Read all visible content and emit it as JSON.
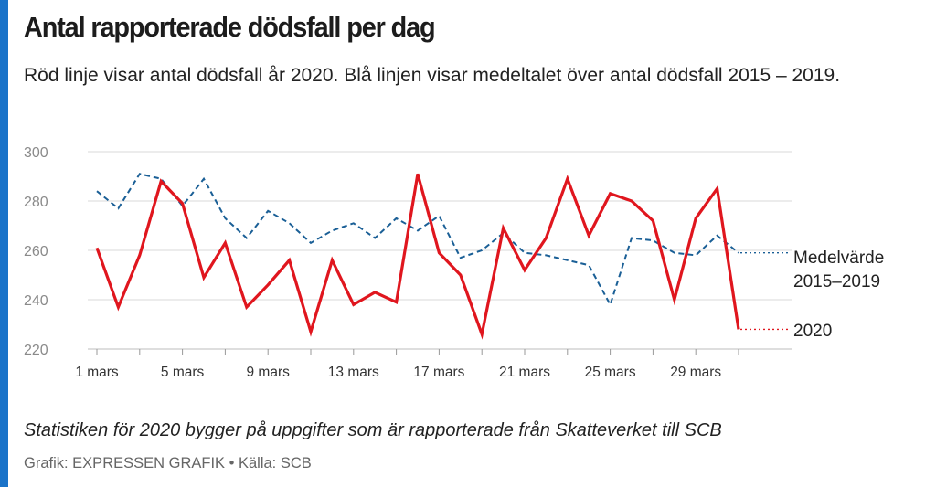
{
  "header": {
    "title": "Antal rapporterade dödsfall per dag",
    "subtitle": "Röd linje visar antal dödsfall år 2020. Blå linjen visar medeltalet över antal dödsfall 2015 – 2019."
  },
  "footer": {
    "caption": "Statistiken för 2020 bygger på uppgifter som är rapporterade från Skatteverket till SCB",
    "credit": "Grafik: EXPRESSEN GRAFIK • Källa: SCB"
  },
  "colors": {
    "accent": "#1a73c9",
    "red": "#e0161e",
    "blue": "#1a5f96"
  },
  "chart_data": {
    "type": "line",
    "title": "Antal rapporterade dödsfall per dag",
    "xlabel": "",
    "ylabel": "",
    "ylim": [
      220,
      300
    ],
    "yticks": [
      220,
      240,
      260,
      280,
      300
    ],
    "grid": true,
    "x": [
      1,
      2,
      3,
      4,
      5,
      6,
      7,
      8,
      9,
      10,
      11,
      12,
      13,
      14,
      15,
      16,
      17,
      18,
      19,
      20,
      21,
      22,
      23,
      24,
      25,
      26,
      27,
      28,
      29,
      30,
      31
    ],
    "xlim": [
      1,
      34
    ],
    "xticks": [
      {
        "day": 1,
        "label": "1 mars"
      },
      {
        "day": 5,
        "label": "5 mars"
      },
      {
        "day": 9,
        "label": "9 mars"
      },
      {
        "day": 13,
        "label": "13 mars"
      },
      {
        "day": 17,
        "label": "17 mars"
      },
      {
        "day": 21,
        "label": "21 mars"
      },
      {
        "day": 25,
        "label": "25 mars"
      },
      {
        "day": 29,
        "label": "29 mars"
      }
    ],
    "x_minor_ticks": [
      3,
      7,
      11,
      15,
      19,
      23,
      27,
      31
    ],
    "series": [
      {
        "name": "2020",
        "label": "2020",
        "color": "#e0161e",
        "style": "solid",
        "values": [
          261,
          237,
          258,
          288,
          279,
          249,
          263,
          237,
          246,
          256,
          227,
          256,
          238,
          243,
          239,
          291,
          259,
          250,
          226,
          269,
          252,
          265,
          289,
          266,
          283,
          280,
          272,
          240,
          273,
          285,
          228
        ]
      },
      {
        "name": "Medelvärde 2015–2019",
        "label_lines": [
          "Medelvärde",
          "2015–2019"
        ],
        "color": "#1a5f96",
        "style": "dashed",
        "values": [
          284,
          277,
          291,
          289,
          278,
          289,
          273,
          265,
          276,
          271,
          263,
          268,
          271,
          265,
          273,
          268,
          274,
          257,
          260,
          267,
          259,
          258,
          256,
          254,
          238,
          265,
          264,
          259,
          258,
          266,
          259
        ]
      }
    ]
  }
}
